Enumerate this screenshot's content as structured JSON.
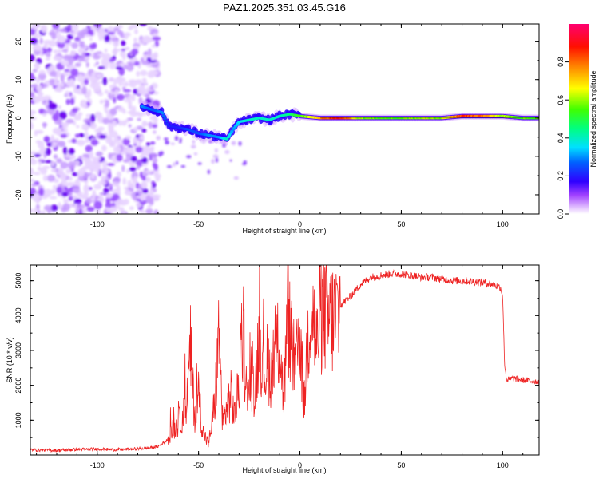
{
  "figure_title": "PAZ1.2025.351.03.45.G16",
  "chart_data": [
    {
      "type": "heatmap",
      "title": "PAZ1.2025.351.03.45.G16",
      "xlabel": "Height of straight line (km)",
      "ylabel": "Frequency (Hz)",
      "xlim": [
        -133,
        118
      ],
      "ylim": [
        -25,
        24.5
      ],
      "x_ticks": [
        -100,
        -50,
        0,
        50,
        100
      ],
      "y_ticks": [
        -20,
        -10,
        0,
        10,
        20
      ],
      "colorbar": {
        "label": "Normalized spectral amplitude",
        "range": [
          0.0,
          1.0
        ],
        "ticks": [
          0.0,
          0.2,
          0.4,
          0.6,
          0.8
        ],
        "colormap": [
          "#ffffff",
          "#c87dff",
          "#7000ff",
          "#0010ff",
          "#00e0ff",
          "#00ff40",
          "#ffff00",
          "#ff8000",
          "#ff0000",
          "#ff0080"
        ]
      },
      "noise_region_x": [
        -133,
        -70
      ],
      "ridge": {
        "x": [
          -78,
          -72,
          -68,
          -65,
          -60,
          -55,
          -50,
          -45,
          -40,
          -36,
          -33,
          -30,
          -25,
          -20,
          -15,
          -10,
          -5,
          0,
          10,
          20,
          30,
          40,
          50,
          60,
          70,
          80,
          90,
          100,
          110,
          118
        ],
        "freq": [
          3,
          2,
          1.5,
          -2,
          -2.5,
          -3,
          -4,
          -4.5,
          -5,
          -5.5,
          -3,
          -1,
          -0.5,
          0,
          -0.5,
          0.5,
          1,
          0.5,
          0,
          0,
          0,
          0,
          0,
          0,
          0,
          0.5,
          0.5,
          0.5,
          0,
          0
        ],
        "amplitude": [
          0.3,
          0.25,
          0.3,
          0.2,
          0.2,
          0.25,
          0.25,
          0.3,
          0.3,
          0.4,
          0.3,
          0.35,
          0.4,
          0.4,
          0.4,
          0.4,
          0.45,
          0.55,
          0.75,
          0.9,
          0.6,
          0.55,
          0.55,
          0.6,
          0.6,
          0.85,
          0.8,
          0.6,
          0.55,
          0.55
        ]
      }
    },
    {
      "type": "line",
      "title": "",
      "xlabel": "Height of straight line (km)",
      "ylabel": "SNR (10 * v/v)",
      "xlim": [
        -133,
        118
      ],
      "ylim": [
        0,
        5450
      ],
      "x_ticks": [
        -100,
        -50,
        0,
        50,
        100
      ],
      "y_ticks": [
        1000,
        2000,
        3000,
        4000,
        5000
      ],
      "series": [
        {
          "name": "SNR",
          "color": "#ee2222",
          "x": [
            -133,
            -120,
            -110,
            -100,
            -90,
            -80,
            -75,
            -70,
            -66,
            -63,
            -60,
            -56,
            -54,
            -52,
            -50,
            -48,
            -45,
            -42,
            -40,
            -38,
            -36,
            -34,
            -32,
            -30,
            -28,
            -26,
            -24,
            -22,
            -20,
            -18,
            -16,
            -14,
            -12,
            -10,
            -8,
            -6,
            -4,
            -2,
            0,
            2,
            4,
            6,
            8,
            10,
            12,
            14,
            16,
            18,
            20,
            25,
            30,
            35,
            40,
            45,
            50,
            55,
            60,
            65,
            70,
            75,
            80,
            85,
            90,
            95,
            99,
            100,
            101,
            102,
            105,
            110,
            118
          ],
          "y": [
            150,
            130,
            160,
            170,
            150,
            180,
            200,
            250,
            400,
            700,
            900,
            1300,
            3000,
            1100,
            1800,
            700,
            300,
            1500,
            3400,
            900,
            1400,
            1700,
            1100,
            2100,
            3500,
            1500,
            2300,
            1800,
            3700,
            2200,
            2700,
            2200,
            2900,
            3300,
            1500,
            4100,
            3000,
            2400,
            3600,
            1300,
            3500,
            4400,
            3000,
            4000,
            4200,
            3800,
            3900,
            4000,
            4300,
            4550,
            4900,
            5100,
            5150,
            5200,
            5200,
            5150,
            5100,
            5100,
            5050,
            5000,
            5000,
            4980,
            4950,
            4900,
            4800,
            4600,
            2600,
            2150,
            2200,
            2150,
            2100
          ]
        }
      ]
    }
  ]
}
